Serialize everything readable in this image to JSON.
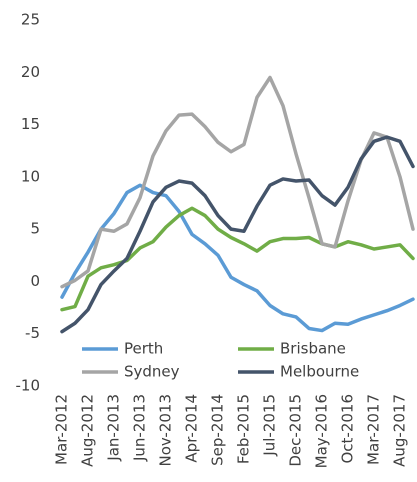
{
  "chart_data": {
    "type": "line",
    "categories": [
      "Mar-2012",
      null,
      "Aug-2012",
      null,
      "Jan-2013",
      null,
      "Jun-2013",
      null,
      "Nov-2013",
      null,
      "Apr-2014",
      null,
      "Sep-2014",
      null,
      "Feb-2015",
      null,
      "Jul-2015",
      null,
      "Dec-2015",
      null,
      "May-2016",
      null,
      "Oct-2016",
      null,
      "Mar-2017",
      null,
      "Aug-2017",
      null
    ],
    "series": [
      {
        "name": "Perth",
        "color": "#5b9bd5",
        "values": [
          -1.5,
          0.8,
          2.8,
          5,
          6.5,
          8.5,
          9.2,
          8.5,
          8.2,
          6.7,
          4.5,
          3.6,
          2.5,
          0.4,
          -0.3,
          -0.9,
          -2.3,
          -3.1,
          -3.4,
          -4.5,
          -4.7,
          -4,
          -4.1,
          -3.6,
          -3.2,
          -2.8,
          -2.3,
          -1.7
        ]
      },
      {
        "name": "Brisbane",
        "color": "#70ad47",
        "values": [
          -2.7,
          -2.4,
          0.5,
          1.3,
          1.6,
          2,
          3.2,
          3.8,
          5.2,
          6.3,
          7,
          6.3,
          5,
          4.2,
          3.6,
          2.9,
          3.8,
          4.1,
          4.1,
          4.2,
          3.6,
          3.3,
          3.8,
          3.5,
          3.1,
          3.3,
          3.5,
          2.2
        ]
      },
      {
        "name": "Sydney",
        "color": "#a5a5a5",
        "values": [
          -0.5,
          0.1,
          1,
          5,
          4.8,
          5.5,
          8,
          12,
          14.4,
          15.9,
          16,
          14.8,
          13.3,
          12.4,
          13.1,
          17.6,
          19.5,
          16.8,
          12.2,
          8,
          3.6,
          3.3,
          7.7,
          11.6,
          14.2,
          13.8,
          10,
          5
        ]
      },
      {
        "name": "Melbourne",
        "color": "#44546a",
        "values": [
          -4.8,
          -4,
          -2.7,
          -0.3,
          1,
          2.2,
          4.8,
          7.6,
          9,
          9.6,
          9.4,
          8.2,
          6.3,
          5,
          4.8,
          7.2,
          9.2,
          9.8,
          9.6,
          9.7,
          8.2,
          7.3,
          9,
          11.7,
          13.4,
          13.8,
          13.4,
          11
        ]
      }
    ],
    "ylim": [
      -10,
      25
    ],
    "yticks": [
      -10,
      -5,
      0,
      5,
      10,
      15,
      20,
      25
    ],
    "grid": false,
    "legend": "bottom"
  }
}
